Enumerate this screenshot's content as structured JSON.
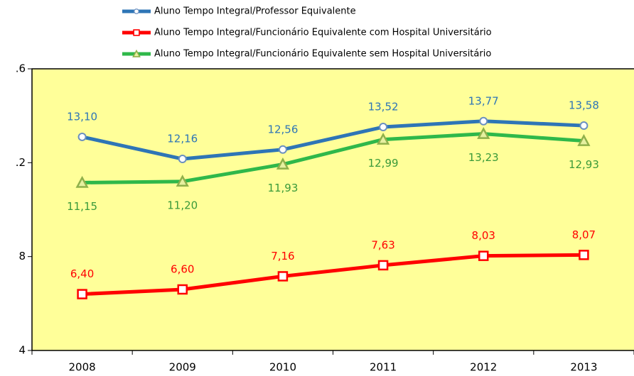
{
  "chart_data": {
    "type": "line",
    "categories": [
      "2008",
      "2009",
      "2010",
      "2011",
      "2012",
      "2013"
    ],
    "series": [
      {
        "name": "Aluno Tempo Integral/Professor Equivalente",
        "color": "#2e75b6",
        "label_color": "#2e75b6",
        "marker": "diamond",
        "label_position": "above",
        "values": [
          13.1,
          12.16,
          12.56,
          13.52,
          13.77,
          13.58
        ],
        "value_labels": [
          "13,10",
          "12,16",
          "12,56",
          "13,52",
          "13,77",
          "13,58"
        ]
      },
      {
        "name": "Aluno Tempo Integral/Funcionário Equivalente com Hospital Universitário",
        "color": "#ff0000",
        "label_color": "#ff0000",
        "marker": "square",
        "label_position": "above",
        "values": [
          6.4,
          6.6,
          7.16,
          7.63,
          8.03,
          8.07
        ],
        "value_labels": [
          "6,40",
          "6,60",
          "7,16",
          "7,63",
          "8,03",
          "8,07"
        ]
      },
      {
        "name": "Aluno Tempo Integral/Funcionário Equivalente sem Hospital Universitário",
        "color": "#2fb84a",
        "label_color": "#3a9a3a",
        "marker": "triangle",
        "label_position": "below",
        "values": [
          11.15,
          11.2,
          11.93,
          12.99,
          13.23,
          12.93
        ],
        "value_labels": [
          "11,15",
          "11,20",
          "11,93",
          "12,99",
          "13,23",
          "12,93"
        ]
      }
    ],
    "ylim": [
      4,
      16
    ],
    "yticks": [
      4,
      8,
      {
        "value": 12,
        "label": ".2"
      },
      {
        "value": 16,
        "label": ".6"
      }
    ],
    "plot_background": "#ffff99"
  }
}
